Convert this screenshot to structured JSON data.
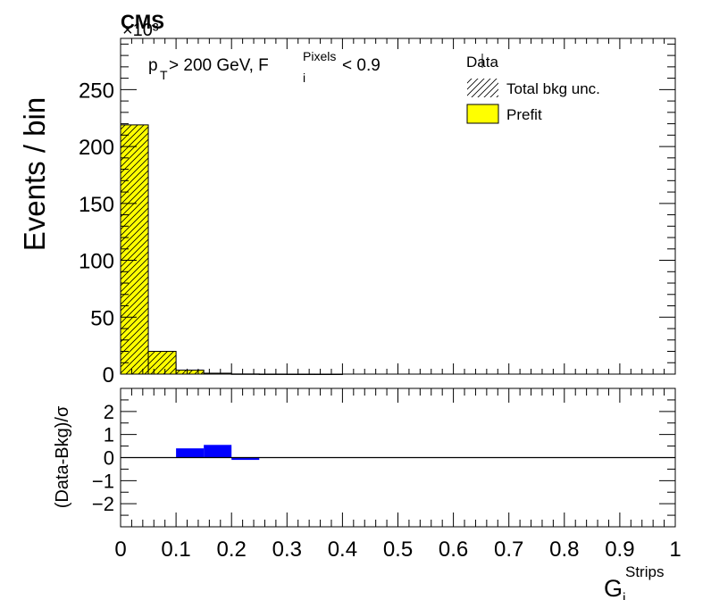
{
  "header": {
    "experiment": "CMS",
    "scale_factor": "×10³"
  },
  "selection": {
    "pt_symbol": "p",
    "pt_sub": "T",
    "pt_rest": " > 200 GeV, F",
    "f_sub": "i",
    "f_sup": "Pixels",
    "f_rest": " < 0.9"
  },
  "legend": {
    "data": "Data",
    "unc": "Total bkg unc.",
    "prefit": "Prefit",
    "position": "top-right"
  },
  "colors": {
    "prefit": "#ffff00",
    "pull": "#0000ff",
    "axis": "#000000"
  },
  "chart_data": [
    {
      "type": "bar",
      "ylabel": "Events / bin",
      "xlim": [
        0,
        1
      ],
      "ylim": [
        0,
        295
      ],
      "y_ticks": [
        0,
        50,
        100,
        150,
        200,
        250
      ],
      "bin_edges": [
        0,
        0.05,
        0.1,
        0.15,
        0.2,
        0.25,
        0.3,
        0.35,
        0.4,
        0.45,
        0.5,
        0.55,
        0.6,
        0.65,
        0.7,
        0.75,
        0.8,
        0.85,
        0.9,
        0.95,
        1.0
      ],
      "series": [
        {
          "name": "Prefit",
          "values": [
            219,
            20,
            3.5,
            0.8,
            0.15,
            0.05,
            0.02,
            0.01,
            0,
            0,
            0,
            0,
            0,
            0,
            0,
            0,
            0,
            0,
            0,
            0
          ]
        }
      ]
    },
    {
      "type": "bar",
      "ylabel": "(Data-Bkg)/σ",
      "xlabel_main": "G",
      "xlabel_sub": "i",
      "xlabel_sup": "Strips",
      "xlim": [
        0,
        1
      ],
      "ylim": [
        -3,
        3
      ],
      "y_ticks": [
        -2,
        -1,
        0,
        1,
        2
      ],
      "x_ticks": [
        "0",
        "0.1",
        "0.2",
        "0.3",
        "0.4",
        "0.5",
        "0.6",
        "0.7",
        "0.8",
        "0.9",
        "1"
      ],
      "bin_edges": [
        0,
        0.05,
        0.1,
        0.15,
        0.2,
        0.25,
        0.3,
        0.35,
        0.4,
        0.45,
        0.5,
        0.55,
        0.6,
        0.65,
        0.7,
        0.75,
        0.8,
        0.85,
        0.9,
        0.95,
        1.0
      ],
      "values": [
        0,
        0,
        0.4,
        0.55,
        -0.1,
        0,
        0,
        0,
        0,
        0,
        0,
        0,
        0,
        0,
        0,
        0,
        0,
        0,
        0,
        0
      ]
    }
  ]
}
